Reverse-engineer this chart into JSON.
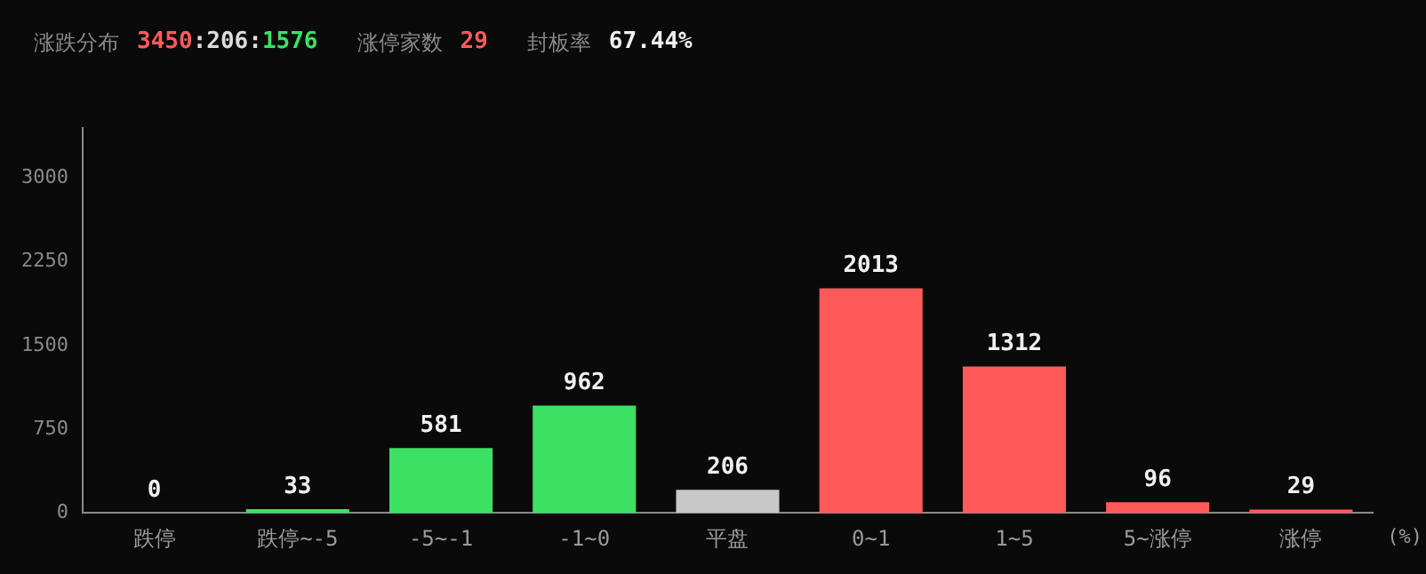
{
  "chart_data": {
    "type": "bar",
    "annotations": [
      "涨跌分布",
      "3450:206:1576",
      "涨停家数",
      "29",
      "封板率",
      "67.44%"
    ],
    "xlabel": "(%)",
    "categories": [
      "跌停",
      "跌停~-5",
      "-5~-1",
      "-1~0",
      "平盘",
      "0~1",
      "1~5",
      "5~涨停",
      "涨停"
    ],
    "values": [
      0,
      33,
      581,
      962,
      206,
      2013,
      1312,
      96,
      29
    ],
    "colors": [
      "#3ce164",
      "#3ce164",
      "#3ce164",
      "#3ce164",
      "#c8c8c8",
      "#ff5a5a",
      "#ff5a5a",
      "#ff5a5a",
      "#ff5a5a"
    ],
    "ylim": [
      0,
      3450
    ],
    "yticks": [
      0,
      750,
      1500,
      2250,
      3000
    ],
    "data_labels": true,
    "grid": false,
    "legend": false
  }
}
